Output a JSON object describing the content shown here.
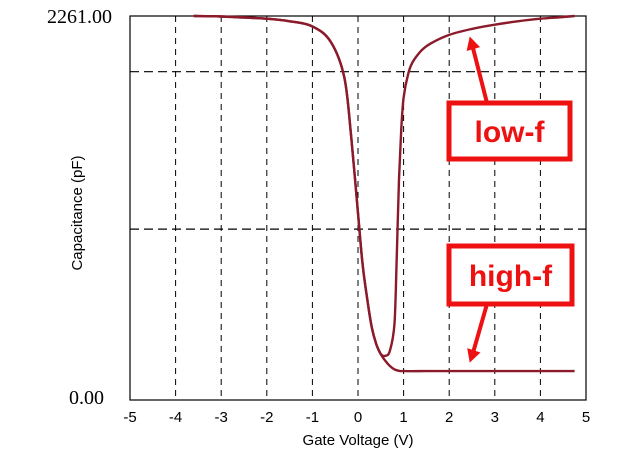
{
  "chart_data": {
    "type": "line",
    "xlabel": "Gate Voltage (V)",
    "ylabel": "Capacitance (pF)",
    "xlim": [
      -5,
      5
    ],
    "ylim": [
      0,
      2261
    ],
    "x_ticks": [
      "-5",
      "-4",
      "-3",
      "-2",
      "-1",
      "0",
      "1",
      "2",
      "3",
      "4",
      "5"
    ],
    "y_tick_labels": {
      "max": "2261.00",
      "min": "0.00"
    },
    "grid": "dashed",
    "colors": {
      "curve": "#8b1a2b",
      "callout": "#ee1111"
    },
    "series": [
      {
        "name": "low-f",
        "x": [
          -3.6,
          -3.0,
          -2.0,
          -1.5,
          -1.0,
          -0.6,
          -0.3,
          -0.15,
          0.0,
          0.1,
          0.2,
          0.3,
          0.4,
          0.5,
          0.6,
          0.7,
          0.8,
          0.85,
          0.9,
          0.95,
          1.0,
          1.1,
          1.2,
          1.4,
          1.6,
          2.0,
          2.5,
          3.0,
          3.5,
          4.0,
          4.5,
          4.75
        ],
        "y": [
          2261,
          2258,
          2245,
          2230,
          2200,
          2110,
          1900,
          1550,
          1100,
          800,
          600,
          430,
          330,
          270,
          260,
          290,
          450,
          850,
          1300,
          1600,
          1780,
          1920,
          1990,
          2060,
          2100,
          2150,
          2185,
          2210,
          2230,
          2245,
          2255,
          2261
        ]
      },
      {
        "name": "high-f",
        "x": [
          -3.6,
          -3.0,
          -2.0,
          -1.5,
          -1.0,
          -0.6,
          -0.3,
          -0.15,
          0.0,
          0.1,
          0.2,
          0.3,
          0.4,
          0.5,
          0.6,
          0.7,
          0.8,
          0.9,
          1.0,
          1.5,
          2.0,
          3.0,
          4.0,
          4.75
        ],
        "y": [
          2261,
          2258,
          2245,
          2230,
          2200,
          2110,
          1900,
          1550,
          1100,
          800,
          600,
          430,
          330,
          270,
          230,
          200,
          180,
          172,
          170,
          170,
          170,
          170,
          170,
          170
        ]
      }
    ],
    "annotations": [
      {
        "text": "low-f",
        "points_to": {
          "x": 2.45,
          "y": 2140
        }
      },
      {
        "text": "high-f",
        "points_to": {
          "x": 2.45,
          "y": 220
        }
      }
    ]
  }
}
